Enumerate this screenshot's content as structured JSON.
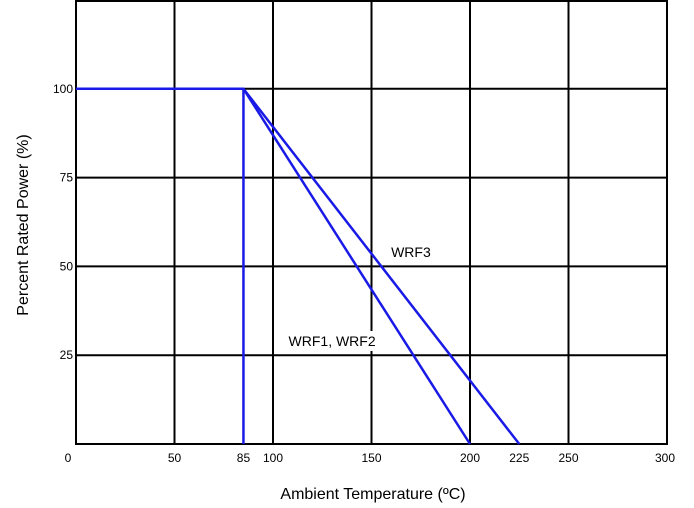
{
  "chart_data": {
    "type": "line",
    "title": "",
    "xlabel": "Ambient Temperature (ºC)",
    "ylabel": "Percent Rated Power (%)",
    "xlim": [
      0,
      300
    ],
    "ylim": [
      0,
      125
    ],
    "grid": true,
    "x_ticks": [
      {
        "value": 0,
        "label": "0"
      },
      {
        "value": 50,
        "label": "50"
      },
      {
        "value": 85,
        "label": "85"
      },
      {
        "value": 100,
        "label": "100"
      },
      {
        "value": 150,
        "label": "150"
      },
      {
        "value": 200,
        "label": "200"
      },
      {
        "value": 225,
        "label": "225"
      },
      {
        "value": 250,
        "label": "250"
      },
      {
        "value": 300,
        "label": "300"
      }
    ],
    "x_grid": [
      50,
      100,
      150,
      200,
      250
    ],
    "y_ticks": [
      {
        "value": 25,
        "label": "25"
      },
      {
        "value": 50,
        "label": "50"
      },
      {
        "value": 75,
        "label": "75"
      },
      {
        "value": 100,
        "label": "100"
      }
    ],
    "y_grid": [
      25,
      50,
      75,
      100
    ],
    "series": [
      {
        "name": "WRF1, WRF2",
        "color": "#1a1ae6",
        "points": [
          [
            0,
            100
          ],
          [
            85,
            100
          ],
          [
            200,
            0
          ]
        ]
      },
      {
        "name": "WRF3",
        "color": "#1a1ae6",
        "points": [
          [
            0,
            100
          ],
          [
            85,
            100
          ],
          [
            225,
            0
          ]
        ]
      }
    ],
    "verticals": [
      {
        "x": 85,
        "from": 0,
        "to": 100,
        "color": "#1a1ae6"
      }
    ],
    "annotations": [
      {
        "text": "WRF3",
        "x": 170,
        "y": 54
      },
      {
        "text": "WRF1, WRF2",
        "x": 130,
        "y": 29
      }
    ]
  }
}
